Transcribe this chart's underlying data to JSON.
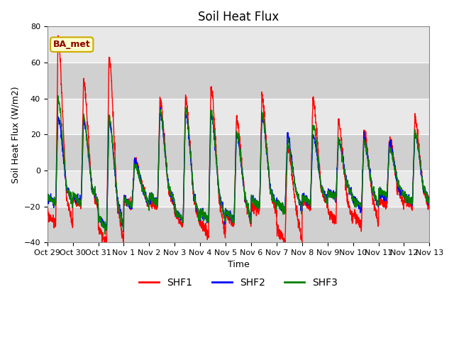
{
  "title": "Soil Heat Flux",
  "ylabel": "Soil Heat Flux (W/m2)",
  "xlabel": "Time",
  "ylim": [
    -40,
    80
  ],
  "yticks": [
    -40,
    -20,
    0,
    20,
    40,
    60,
    80
  ],
  "colors": {
    "SHF1": "red",
    "SHF2": "blue",
    "SHF3": "green"
  },
  "legend_label": "BA_met",
  "legend_bg": "#ffffcc",
  "legend_border": "#ccaa00",
  "bg_color": "#e8e8e8",
  "band_color": "#d0d0d0",
  "grid_color": "white",
  "num_days": 15,
  "xtick_labels": [
    "Oct 29",
    "Oct 30",
    "Oct 31",
    "Nov 1",
    "Nov 2",
    "Nov 3",
    "Nov 4",
    "Nov 5",
    "Nov 6",
    "Nov 7",
    "Nov 8",
    "Nov 9",
    "Nov 10",
    "Nov 11",
    "Nov 12",
    "Nov 13"
  ],
  "linewidth": 1.0,
  "pts_per_day": 144,
  "night_base": -18,
  "day_peaks_shf1": [
    76,
    50,
    65,
    5,
    41,
    40,
    47,
    29,
    41,
    12,
    40,
    27,
    22,
    18,
    29
  ],
  "day_peaks_shf2": [
    30,
    28,
    28,
    5,
    33,
    33,
    32,
    20,
    31,
    19,
    20,
    17,
    18,
    16,
    21
  ],
  "day_peaks_shf3": [
    41,
    30,
    30,
    3,
    34,
    35,
    34,
    22,
    32,
    15,
    26,
    16,
    16,
    13,
    22
  ],
  "night_mins_shf1": [
    -30,
    -20,
    -40,
    -20,
    -20,
    -30,
    -36,
    -30,
    -23,
    -40,
    -20,
    -28,
    -30,
    -20,
    -20
  ],
  "night_mins_shf2": [
    -18,
    -18,
    -32,
    -20,
    -18,
    -28,
    -28,
    -28,
    -20,
    -22,
    -18,
    -15,
    -20,
    -15,
    -18
  ],
  "night_mins_shf3": [
    -18,
    -18,
    -33,
    -20,
    -18,
    -28,
    -28,
    -28,
    -20,
    -22,
    -18,
    -15,
    -20,
    -14,
    -18
  ]
}
